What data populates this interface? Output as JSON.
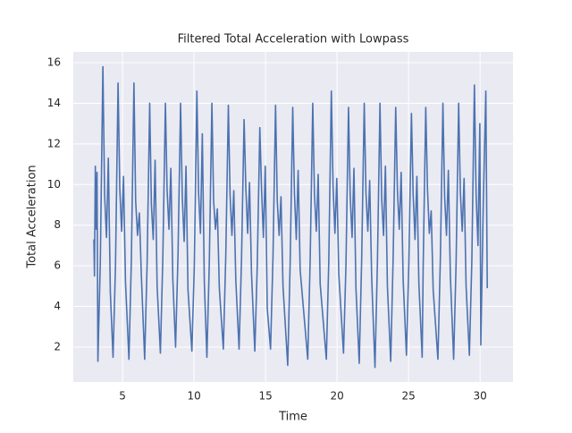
{
  "chart_data": {
    "type": "line",
    "title": "Filtered Total Acceleration with Lowpass",
    "xlabel": "Time",
    "ylabel": "Total Acceleration",
    "x": [
      3.0,
      3.04,
      3.1,
      3.17,
      3.22,
      3.28,
      3.45,
      3.63,
      3.75,
      3.88,
      4.01,
      4.15,
      4.34,
      4.51,
      4.69,
      4.81,
      4.94,
      5.07,
      5.21,
      5.45,
      5.62,
      5.8,
      5.92,
      6.05,
      6.18,
      6.32,
      6.55,
      6.72,
      6.9,
      7.02,
      7.15,
      7.28,
      7.42,
      7.65,
      7.82,
      8.0,
      8.12,
      8.25,
      8.38,
      8.52,
      8.71,
      8.88,
      9.06,
      9.18,
      9.31,
      9.44,
      9.58,
      9.85,
      10.02,
      10.2,
      10.32,
      10.45,
      10.58,
      10.72,
      10.9,
      11.07,
      11.25,
      11.37,
      11.5,
      11.63,
      11.77,
      12.05,
      12.22,
      12.4,
      12.52,
      12.65,
      12.78,
      12.92,
      13.15,
      13.32,
      13.5,
      13.62,
      13.75,
      13.88,
      14.02,
      14.25,
      14.42,
      14.6,
      14.72,
      14.85,
      14.98,
      15.12,
      15.35,
      15.52,
      15.7,
      15.82,
      15.95,
      16.08,
      16.22,
      16.55,
      16.72,
      16.9,
      17.02,
      17.15,
      17.28,
      17.42,
      17.95,
      18.12,
      18.3,
      18.42,
      18.55,
      18.68,
      18.82,
      19.25,
      19.42,
      19.6,
      19.72,
      19.85,
      19.98,
      20.12,
      20.45,
      20.62,
      20.8,
      20.92,
      21.05,
      21.18,
      21.32,
      21.55,
      21.72,
      21.9,
      22.02,
      22.15,
      22.28,
      22.42,
      22.65,
      22.82,
      23.0,
      23.12,
      23.25,
      23.38,
      23.52,
      23.75,
      23.92,
      24.1,
      24.22,
      24.35,
      24.48,
      24.62,
      24.85,
      25.02,
      25.2,
      25.32,
      25.45,
      25.58,
      25.72,
      25.95,
      26.02,
      26.2,
      26.32,
      26.45,
      26.58,
      26.72,
      27.05,
      27.22,
      27.4,
      27.52,
      27.65,
      27.78,
      27.92,
      28.15,
      28.32,
      28.5,
      28.62,
      28.75,
      28.88,
      29.02,
      29.25,
      29.42,
      29.6,
      29.72,
      29.85,
      29.98,
      30.05,
      30.22,
      30.4,
      30.5
    ],
    "values": [
      7.3,
      5.5,
      10.9,
      7.8,
      10.6,
      1.3,
      6.2,
      15.8,
      9.5,
      7.4,
      11.3,
      4.7,
      1.5,
      6.0,
      15.0,
      9.8,
      7.7,
      10.4,
      5.2,
      1.4,
      6.3,
      15.0,
      9.2,
      7.5,
      8.6,
      5.5,
      1.4,
      6.1,
      14.0,
      9.0,
      7.3,
      11.2,
      5.0,
      1.7,
      6.4,
      14.0,
      9.7,
      7.8,
      10.8,
      5.3,
      2.0,
      6.5,
      14.0,
      9.4,
      7.2,
      10.9,
      4.8,
      1.8,
      6.0,
      14.6,
      9.6,
      7.6,
      12.5,
      5.2,
      1.5,
      6.2,
      14.0,
      9.2,
      7.8,
      8.8,
      4.9,
      1.9,
      6.5,
      13.9,
      9.5,
      7.5,
      9.7,
      5.3,
      1.9,
      6.3,
      13.2,
      9.9,
      7.6,
      10.1,
      5.6,
      1.8,
      6.0,
      12.8,
      9.8,
      7.4,
      10.9,
      3.9,
      1.9,
      6.4,
      13.9,
      9.2,
      7.5,
      9.4,
      5.0,
      1.1,
      6.1,
      13.8,
      9.6,
      7.3,
      10.7,
      5.8,
      1.4,
      6.3,
      14.0,
      9.5,
      7.7,
      10.5,
      5.1,
      1.4,
      6.2,
      14.6,
      9.9,
      7.6,
      10.3,
      5.6,
      1.7,
      6.0,
      13.8,
      9.4,
      7.4,
      10.8,
      4.9,
      1.2,
      6.3,
      14.0,
      9.6,
      7.7,
      10.2,
      5.4,
      1.0,
      6.1,
      14.0,
      9.3,
      7.5,
      10.9,
      5.0,
      1.3,
      6.4,
      13.8,
      9.7,
      7.8,
      10.6,
      5.3,
      1.6,
      6.2,
      13.5,
      9.5,
      7.3,
      10.4,
      5.1,
      1.5,
      6.0,
      13.8,
      9.8,
      7.6,
      8.7,
      4.8,
      1.4,
      6.3,
      14.0,
      9.4,
      7.5,
      10.7,
      5.5,
      1.4,
      6.1,
      14.0,
      9.6,
      7.7,
      10.3,
      5.0,
      1.6,
      6.2,
      14.9,
      9.5,
      7.0,
      13.0,
      2.1,
      9.0,
      14.6,
      4.9
    ],
    "color": "#4c72b0",
    "xlim": [
      1.56,
      32.3
    ],
    "ylim": [
      0.28,
      16.53
    ],
    "xticks": [
      5,
      10,
      15,
      20,
      25,
      30
    ],
    "yticks": [
      2,
      4,
      6,
      8,
      10,
      12,
      14,
      16
    ],
    "grid": true
  }
}
